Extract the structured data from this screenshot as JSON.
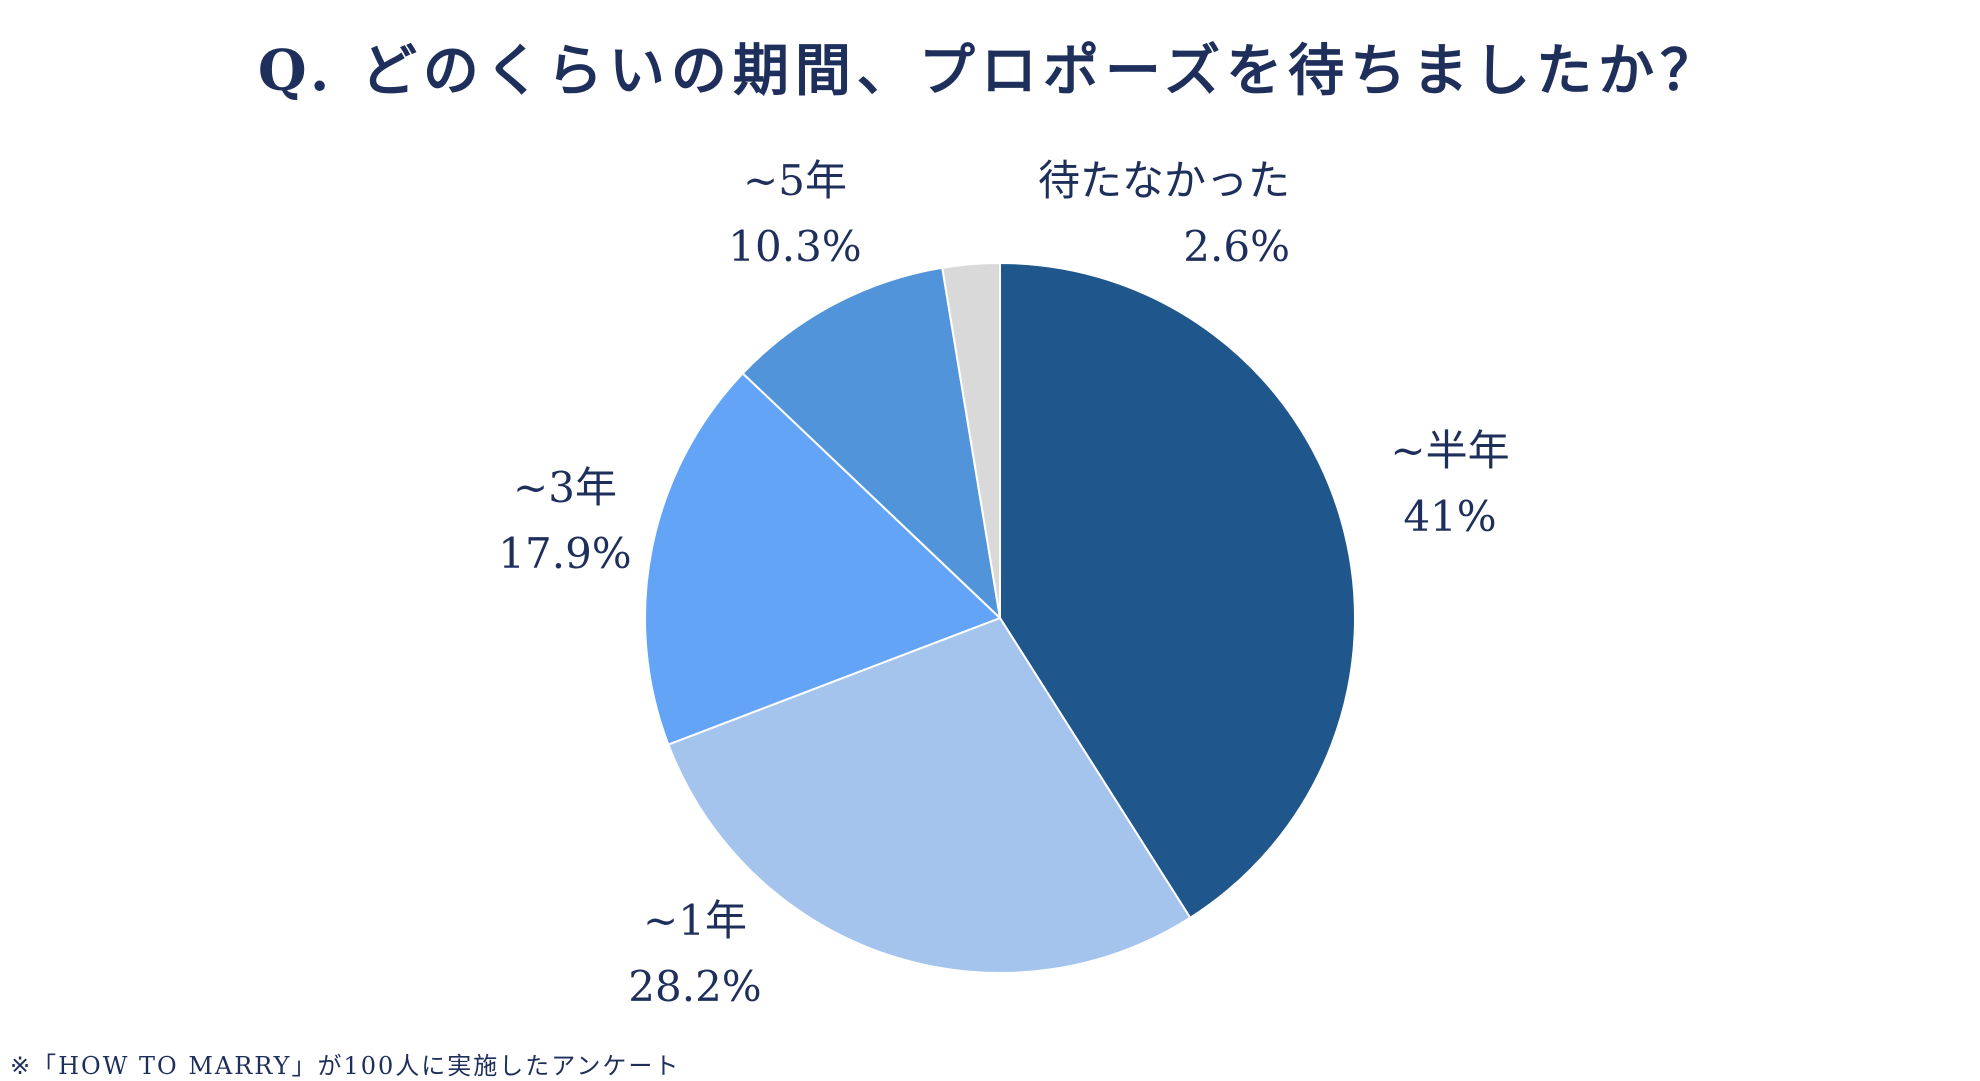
{
  "title": "Q. どのくらいの期間、プロポーズを待ちましたか？",
  "footnote": "※「HOW TO MARRY」が100人に実施したアンケート",
  "chart_data": {
    "type": "pie",
    "title": "Q. どのくらいの期間、プロポーズを待ちましたか？",
    "start_angle_deg": 0,
    "direction": "clockwise",
    "slices": [
      {
        "label": "~半年",
        "value": 41,
        "value_label": "41%",
        "color": "#1f568b"
      },
      {
        "label": "~1年",
        "value": 28.2,
        "value_label": "28.2%",
        "color": "#a4c4ed"
      },
      {
        "label": "~3年",
        "value": 17.9,
        "value_label": "17.9%",
        "color": "#64a4f7"
      },
      {
        "label": "~5年",
        "value": 10.3,
        "value_label": "10.3%",
        "color": "#5294da"
      },
      {
        "label": "待たなかった",
        "value": 2.6,
        "value_label": "2.6%",
        "color": "#d9d9d9"
      }
    ]
  }
}
